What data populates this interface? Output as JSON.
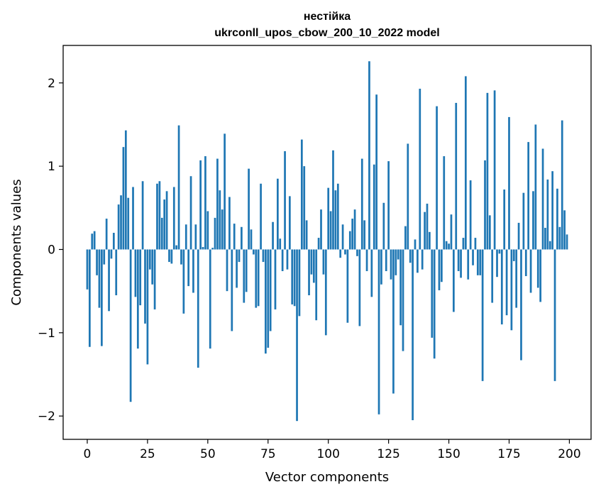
{
  "chart_data": {
    "type": "bar",
    "title": "нестійка",
    "subtitle": "ukrconll_upos_cbow_200_10_2022 model",
    "xlabel": "Vector components",
    "ylabel": "Components values",
    "xlim": [
      -10,
      209
    ],
    "ylim": [
      -2.28,
      2.45
    ],
    "xticks": [
      0,
      25,
      50,
      75,
      100,
      125,
      150,
      175,
      200
    ],
    "yticks": [
      -2,
      -1,
      0,
      1,
      2
    ],
    "xtick_labels": [
      "0",
      "25",
      "50",
      "75",
      "100",
      "125",
      "150",
      "175",
      "200"
    ],
    "ytick_labels": [
      "−2",
      "−1",
      "0",
      "1",
      "2"
    ],
    "bar_color": "#1f77b4",
    "grid": false,
    "values": [
      -0.48,
      -1.17,
      0.19,
      0.22,
      -0.31,
      -0.7,
      -1.16,
      -0.18,
      0.37,
      -0.74,
      -0.11,
      0.2,
      -0.55,
      0.54,
      0.65,
      1.23,
      1.43,
      0.62,
      -1.83,
      0.75,
      -0.57,
      -1.19,
      -0.67,
      0.82,
      -0.89,
      -1.38,
      -0.24,
      -0.42,
      -0.72,
      0.79,
      0.82,
      0.38,
      0.6,
      0.7,
      -0.15,
      -0.17,
      0.75,
      0.05,
      1.49,
      -0.18,
      -0.77,
      0.3,
      -0.44,
      0.88,
      -0.52,
      0.3,
      -1.42,
      1.07,
      0.03,
      1.12,
      0.46,
      -1.19,
      0.02,
      0.38,
      1.09,
      0.71,
      0.48,
      1.39,
      -0.5,
      0.63,
      -0.98,
      0.31,
      -0.46,
      -0.15,
      0.27,
      -0.64,
      -0.51,
      0.97,
      0.24,
      -0.06,
      -0.7,
      -0.68,
      0.79,
      -0.15,
      -1.25,
      -1.18,
      -0.98,
      0.33,
      -0.72,
      0.85,
      0.13,
      -0.26,
      1.18,
      -0.24,
      0.64,
      -0.66,
      -0.68,
      -2.06,
      -0.8,
      1.32,
      1.0,
      0.35,
      -0.55,
      -0.3,
      -0.4,
      -0.85,
      0.14,
      0.48,
      -0.3,
      -1.03,
      0.74,
      0.46,
      1.19,
      0.71,
      0.79,
      -0.1,
      0.3,
      -0.06,
      -0.88,
      0.22,
      0.37,
      0.48,
      -0.08,
      -0.92,
      1.09,
      0.35,
      -0.26,
      2.26,
      -0.57,
      1.02,
      1.86,
      -1.98,
      -0.42,
      0.56,
      -0.26,
      1.06,
      -0.36,
      -1.73,
      -0.31,
      -0.12,
      -0.91,
      -1.22,
      0.28,
      1.27,
      -0.16,
      -2.05,
      0.12,
      -0.28,
      1.93,
      -0.24,
      0.45,
      0.55,
      0.21,
      -1.06,
      -1.31,
      1.72,
      -0.49,
      -0.39,
      1.12,
      0.1,
      0.07,
      0.42,
      -0.75,
      1.76,
      -0.26,
      -0.34,
      0.14,
      2.08,
      -0.36,
      0.83,
      -0.19,
      0.14,
      -0.31,
      -0.31,
      -1.58,
      1.07,
      1.88,
      0.41,
      -0.64,
      1.91,
      -0.33,
      -0.05,
      -0.9,
      0.72,
      -0.79,
      1.59,
      -0.97,
      -0.14,
      -0.7,
      0.32,
      -1.33,
      0.68,
      -0.32,
      1.29,
      -0.52,
      0.7,
      1.5,
      -0.46,
      -0.63,
      1.21,
      0.26,
      0.84,
      0.1,
      0.94,
      -1.58,
      0.73,
      0.27,
      1.55,
      0.47,
      0.18
    ]
  }
}
